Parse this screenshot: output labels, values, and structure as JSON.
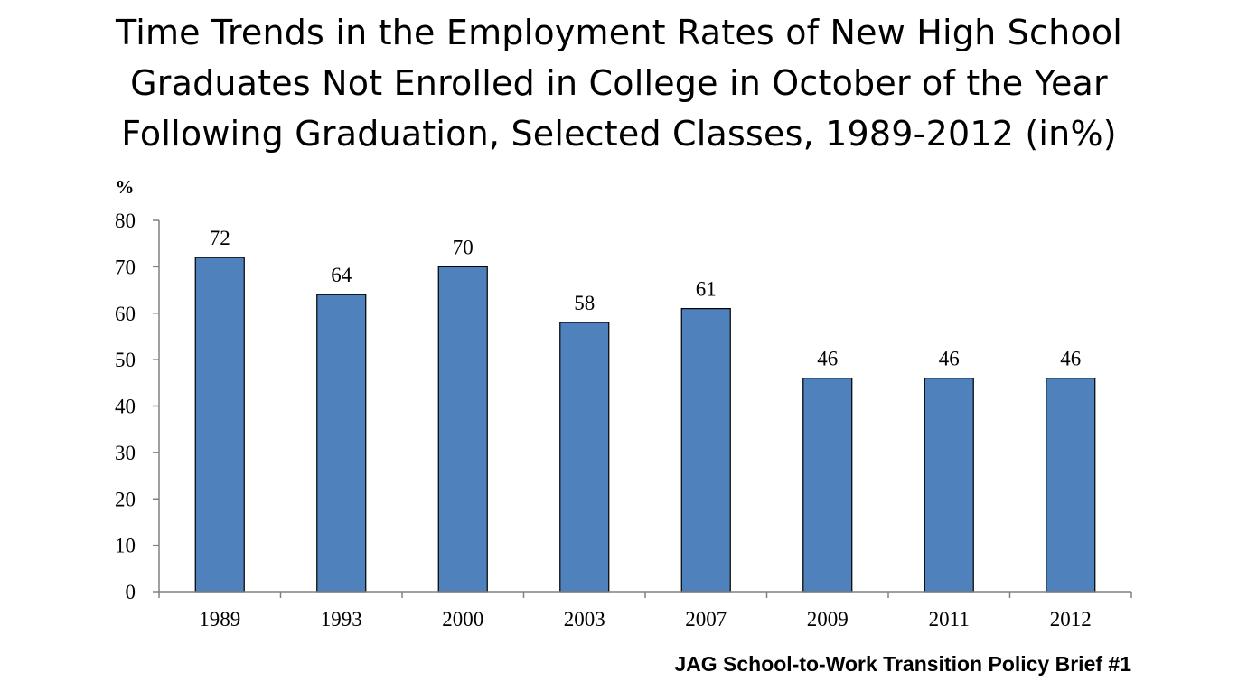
{
  "title_lines": [
    "Time Trends in the Employment Rates of New High School",
    "Graduates Not Enrolled in College in October of the Year",
    "Following Graduation, Selected Classes, 1989-2012 (in%)"
  ],
  "source": "JAG School-to-Work Transition Policy Brief #1",
  "chart_data": {
    "type": "bar",
    "title": "Time Trends in the Employment Rates of New High School Graduates Not Enrolled in College in October of the Year Following Graduation, Selected Classes, 1989-2012 (in%)",
    "xlabel": "",
    "ylabel": "%",
    "categories": [
      "1989",
      "1993",
      "2000",
      "2003",
      "2007",
      "2009",
      "2011",
      "2012"
    ],
    "values": [
      72,
      64,
      70,
      58,
      61,
      46,
      46,
      46
    ],
    "data_labels": [
      "72",
      "64",
      "70",
      "58",
      "61",
      "46",
      "46",
      "46"
    ],
    "ylim": [
      0,
      80
    ],
    "yticks": [
      "0",
      "10",
      "20",
      "30",
      "40",
      "50",
      "60",
      "70",
      "80"
    ],
    "grid": false,
    "legend": "none",
    "colors": {
      "bar_fill": "#4f81bd",
      "bar_stroke": "#000000",
      "axis": "#808080"
    }
  }
}
